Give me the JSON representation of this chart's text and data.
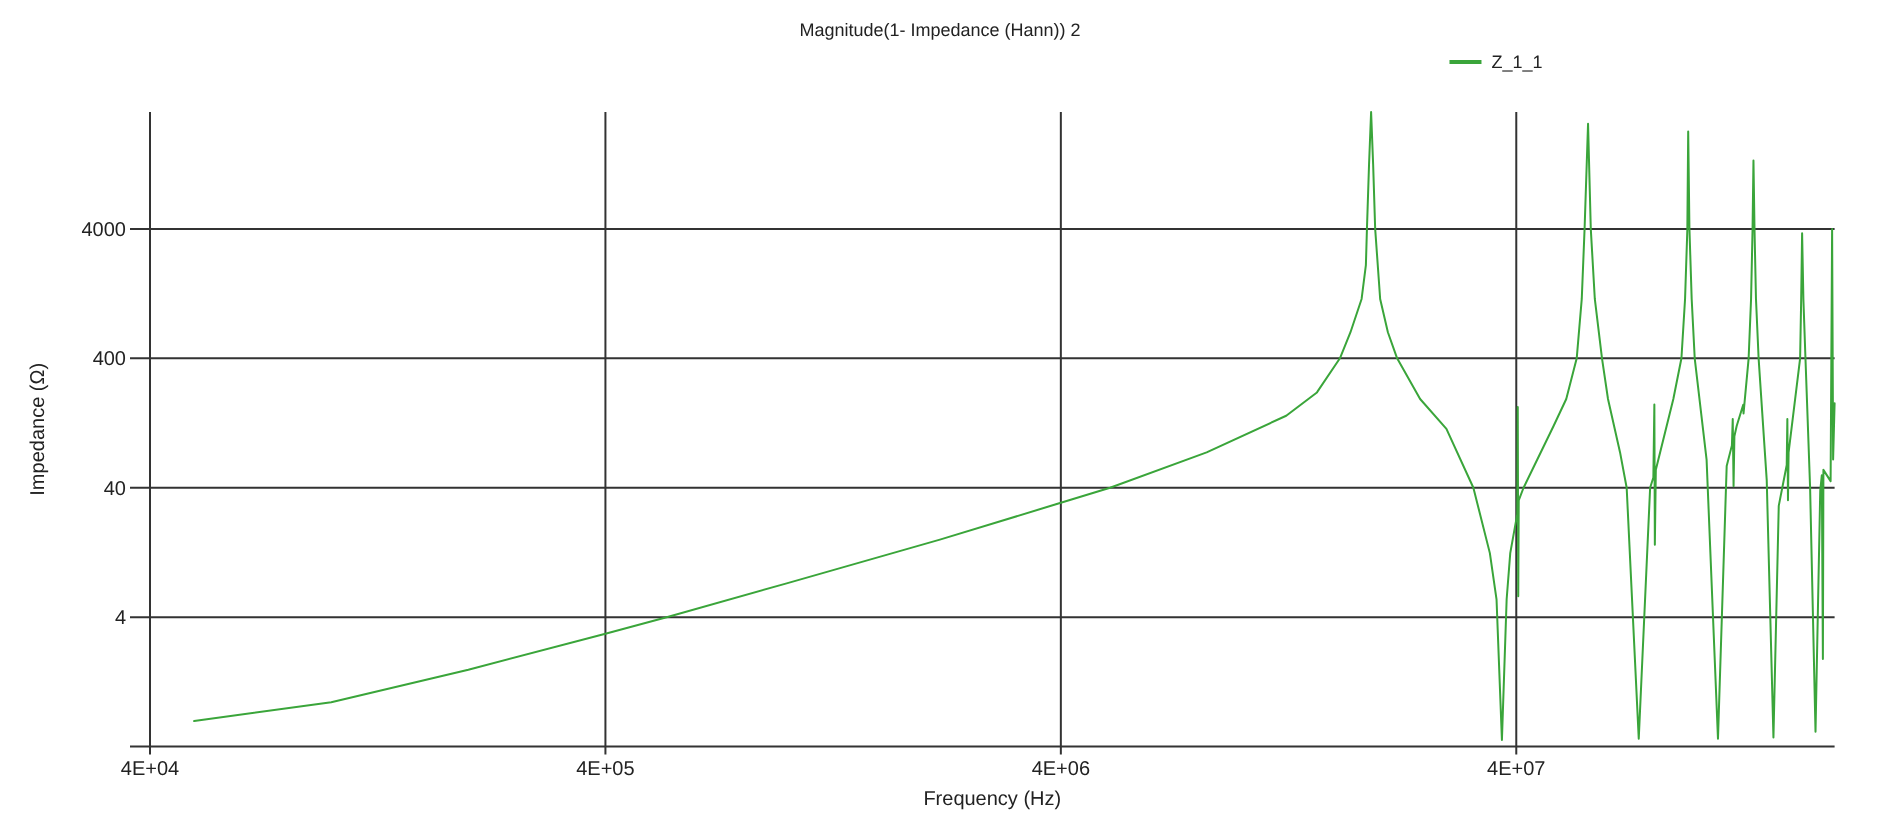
{
  "chart_data": {
    "type": "line",
    "title": "Magnitude(1- Impedance (Hann)) 2",
    "xlabel": "Frequency (Hz)",
    "ylabel": "Impedance (Ω)",
    "x": [
      50000,
      100000,
      200000,
      400000,
      545000,
      1000000,
      2170000,
      4000000,
      5130000,
      8360000,
      12500000,
      14600000,
      16400000,
      17300000,
      18300000,
      18700000,
      18800000,
      19000000,
      19200000,
      19400000,
      19600000,
      20100000,
      20900000,
      21900000,
      24600000,
      28100000,
      32200000,
      35000000,
      36200000,
      37200000,
      38100000,
      38800000,
      40200000,
      40300000,
      40400000,
      40500000,
      41500000,
      48300000,
      51500000,
      54300000,
      55700000,
      56500000,
      57500000,
      58300000,
      59500000,
      61700000,
      63600000,
      67600000,
      69900000,
      74300000,
      78700000,
      80000000,
      80400000,
      80600000,
      81000000,
      88500000,
      92200000,
      93900000,
      95000000,
      95400000,
      96000000,
      97100000,
      98600000,
      104700000,
      110900000,
      115900000,
      119000000,
      119500000,
      120000000,
      120500000,
      121900000,
      126000000,
      126200000,
      129500000,
      131100000,
      132100000,
      132700000,
      133400000,
      134400000,
      136200000,
      141900000,
      146800000,
      150800000,
      157000000,
      157500000,
      158000000,
      158500000,
      168000000,
      168900000,
      169700000,
      170800000,
      172600000,
      176700000,
      181600000,
      186000000,
      187500000,
      188500000,
      189000000,
      196000000,
      197500000,
      198500000,
      200000000
    ],
    "series": [
      {
        "name": "Z_1_1",
        "color": "#3aa53a",
        "values": [
          0.63,
          0.88,
          1.57,
          2.98,
          4,
          7.3,
          15.9,
          30.6,
          40,
          75,
          144,
          218,
          400,
          636,
          1150,
          2100,
          4000,
          12500,
          32000,
          12500,
          4000,
          1150,
          636,
          400,
          194,
          114,
          40,
          12.5,
          5.5,
          0.45,
          5.5,
          12.5,
          25,
          168,
          5.8,
          32,
          40,
          120,
          194,
          400,
          1150,
          4000,
          26000,
          4000,
          1150,
          400,
          194,
          75,
          40,
          0.46,
          40,
          48,
          176,
          14.5,
          55,
          194,
          400,
          1150,
          4000,
          22600,
          4000,
          1150,
          400,
          66,
          0.46,
          59,
          85,
          136,
          41,
          100,
          120,
          175,
          150,
          400,
          1150,
          4000,
          13500,
          4000,
          1150,
          400,
          46,
          0.47,
          29,
          60,
          136,
          32,
          75,
          400,
          1150,
          3700,
          1150,
          400,
          40,
          0.52,
          38,
          50,
          1.9,
          55,
          45,
          4000,
          66,
          180
        ]
      }
    ],
    "xlim": [
      40000,
      200000000
    ],
    "ylim": [
      0.4,
      32000
    ],
    "xticks": [
      {
        "value": 40000,
        "label": "4E+04"
      },
      {
        "value": 400000,
        "label": "4E+05"
      },
      {
        "value": 4000000,
        "label": "4E+06"
      },
      {
        "value": 40000000,
        "label": "4E+07"
      }
    ],
    "yticks": [
      4,
      40,
      400,
      4000
    ],
    "log": "xy",
    "grid": true,
    "legend": "top right"
  }
}
